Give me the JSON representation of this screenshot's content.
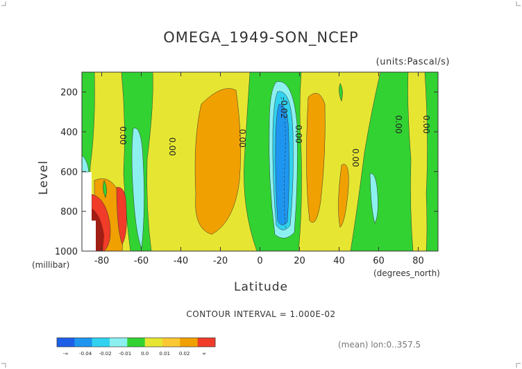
{
  "chart_data": {
    "type": "heatmap",
    "title": "OMEGA_1949-SON_NCEP",
    "units": "(units:Pascal/s)",
    "xlabel": "Latitude",
    "xunit": "(degrees_north)",
    "ylabel": "Level",
    "yunit": "(millibar)",
    "x_ticks": [
      "-80",
      "-60",
      "-40",
      "-20",
      "0",
      "20",
      "40",
      "60",
      "80"
    ],
    "y_ticks": [
      "200",
      "400",
      "600",
      "800",
      "1000"
    ],
    "xlim": [
      -90,
      90
    ],
    "ylim": [
      1000,
      100
    ],
    "contour_interval": "CONTOUR INTERVAL = 1.000E-02",
    "note": "(mean) lon:0..357.5",
    "contour_labels": [
      "0.00",
      "0.00",
      "0.00",
      "-0.02",
      "0.00",
      "0.00",
      "0.00",
      "0.00"
    ],
    "colorbar": {
      "colors": [
        "#1e5fe8",
        "#1e96f0",
        "#30d2f0",
        "#8cf0f0",
        "#32d232",
        "#e6e632",
        "#fac832",
        "#f0a000",
        "#f03c28"
      ],
      "labels": [
        "-∞",
        "-0.04",
        "-0.02",
        "-0.01",
        "0.0",
        "0.01",
        "0.02",
        "∞"
      ]
    }
  }
}
